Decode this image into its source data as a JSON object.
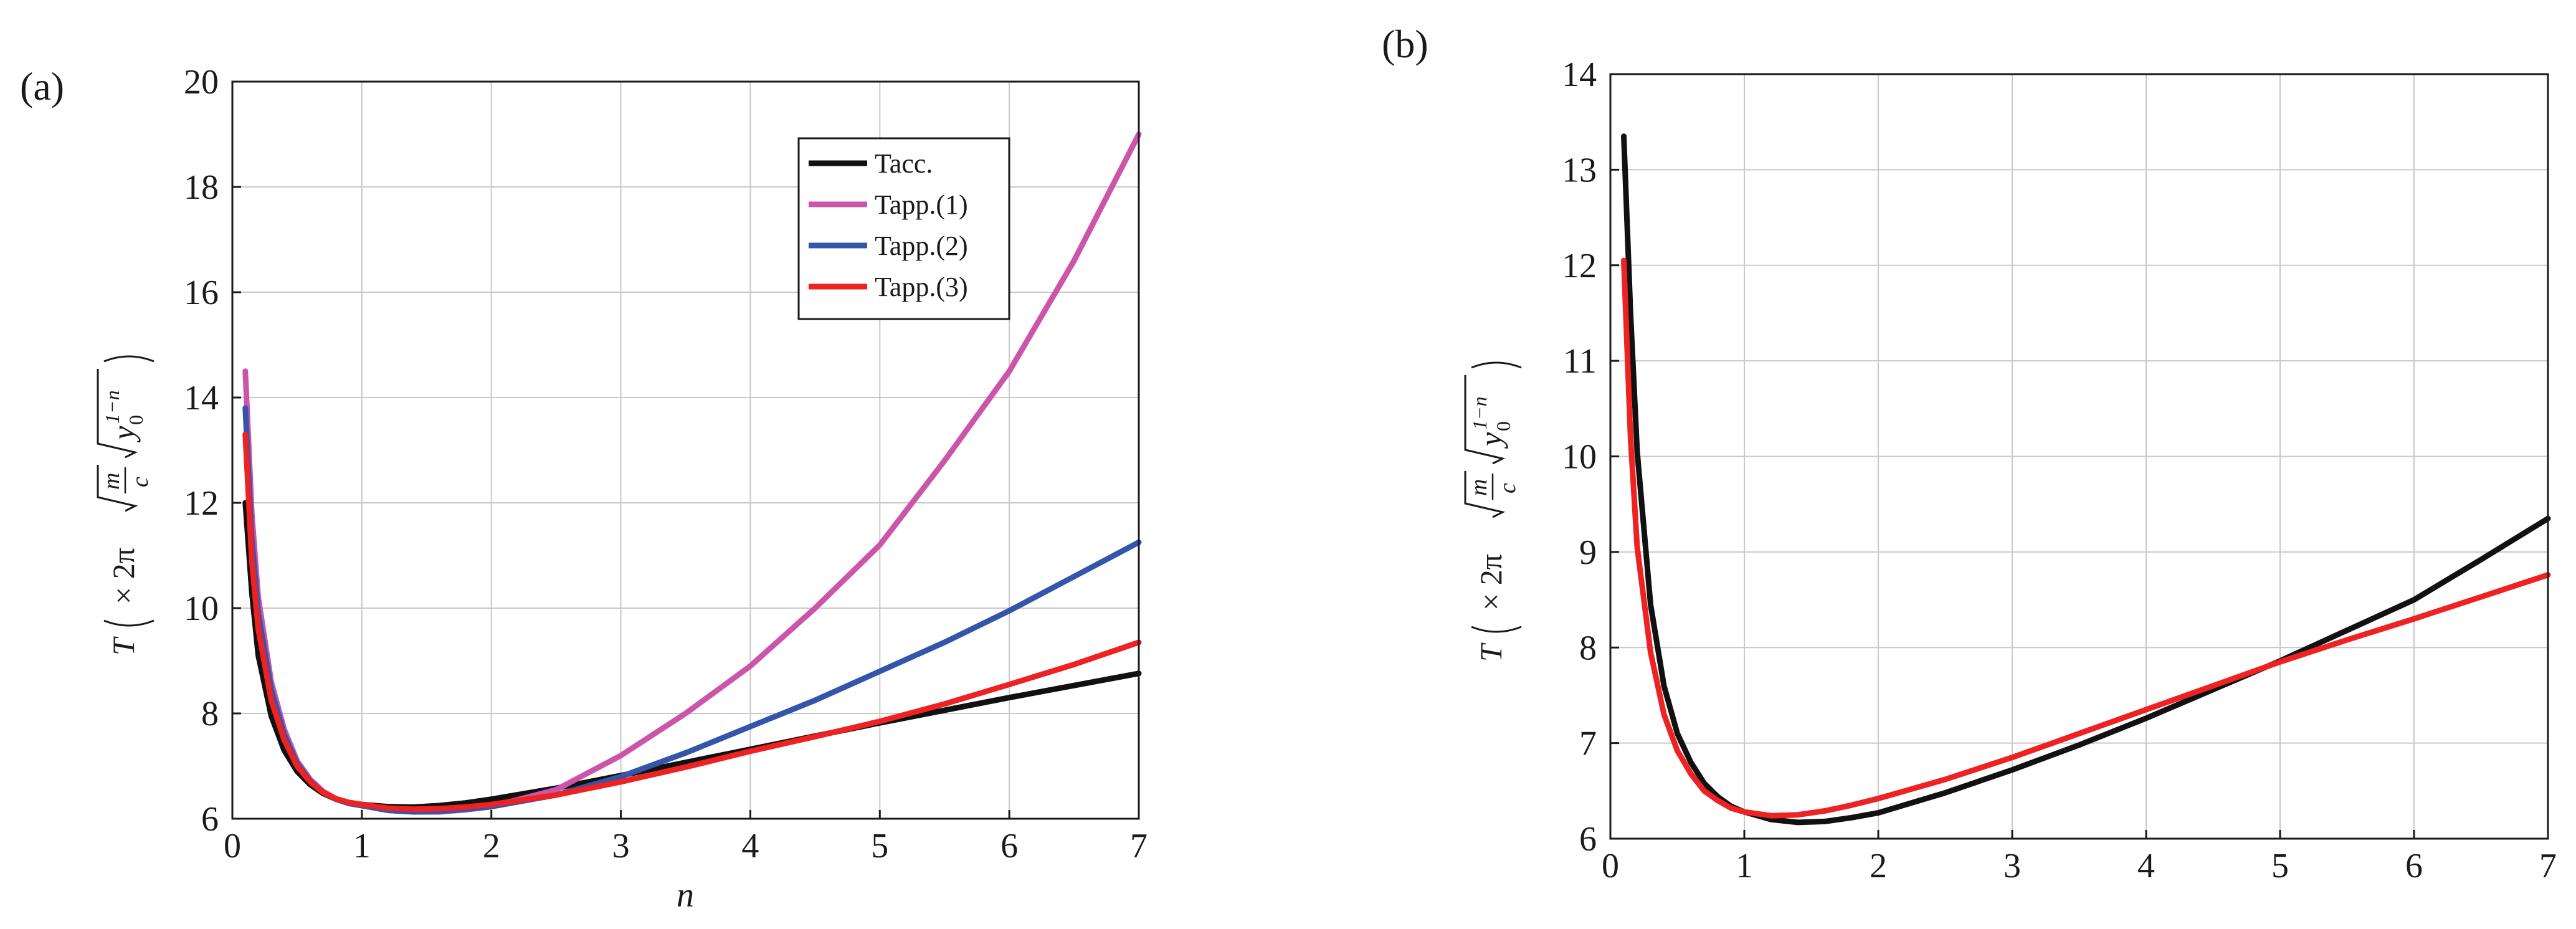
{
  "chart_data": [
    {
      "type": "line",
      "panel_label": "(a)",
      "xlabel": "n",
      "ylabel": {
        "prefix": "T",
        "times": "× 2π",
        "frac_num": "m",
        "frac_den": "c",
        "y_base": "y",
        "y_sub": "0",
        "y_sup": "1−n"
      },
      "xlim": [
        0,
        7
      ],
      "ylim": [
        6,
        20
      ],
      "x_ticks": [
        0,
        1,
        2,
        3,
        4,
        5,
        6,
        7
      ],
      "y_ticks": [
        6,
        8,
        10,
        12,
        14,
        16,
        18,
        20
      ],
      "grid": true,
      "legend_position": "top-right",
      "series": [
        {
          "name": "Tacc.",
          "color": "#111111",
          "x": [
            0.1,
            0.15,
            0.2,
            0.3,
            0.4,
            0.5,
            0.6,
            0.7,
            0.8,
            0.9,
            1.0,
            1.2,
            1.4,
            1.6,
            1.8,
            2.0,
            2.5,
            3.0,
            3.5,
            4.0,
            4.5,
            5.0,
            5.5,
            6.0,
            6.5,
            7.0
          ],
          "y": [
            12.0,
            10.3,
            9.1,
            7.95,
            7.3,
            6.9,
            6.65,
            6.48,
            6.37,
            6.3,
            6.27,
            6.23,
            6.22,
            6.25,
            6.3,
            6.37,
            6.58,
            6.82,
            7.07,
            7.32,
            7.57,
            7.82,
            8.06,
            8.3,
            8.53,
            8.76
          ]
        },
        {
          "name": "Tapp.(1)",
          "color": "#cc55aa",
          "x": [
            0.1,
            0.15,
            0.2,
            0.3,
            0.4,
            0.5,
            0.6,
            0.7,
            0.8,
            0.9,
            1.0,
            1.2,
            1.4,
            1.6,
            1.8,
            2.0,
            2.5,
            3.0,
            3.5,
            4.0,
            4.5,
            5.0,
            5.5,
            6.0,
            6.5,
            7.0
          ],
          "y": [
            14.5,
            11.8,
            10.2,
            8.6,
            7.7,
            7.1,
            6.75,
            6.52,
            6.38,
            6.3,
            6.25,
            6.16,
            6.13,
            6.13,
            6.17,
            6.23,
            6.55,
            7.2,
            8.0,
            8.9,
            10.0,
            11.2,
            12.8,
            14.5,
            16.6,
            19.0
          ]
        },
        {
          "name": "Tapp.(2)",
          "color": "#3355aa",
          "x": [
            0.1,
            0.15,
            0.2,
            0.3,
            0.4,
            0.5,
            0.6,
            0.7,
            0.8,
            0.9,
            1.0,
            1.2,
            1.4,
            1.6,
            1.8,
            2.0,
            2.5,
            3.0,
            3.5,
            4.0,
            4.5,
            5.0,
            5.5,
            6.0,
            6.5,
            7.0
          ],
          "y": [
            13.8,
            11.3,
            9.9,
            8.45,
            7.6,
            7.05,
            6.72,
            6.5,
            6.37,
            6.29,
            6.25,
            6.16,
            6.13,
            6.14,
            6.18,
            6.23,
            6.45,
            6.8,
            7.25,
            7.75,
            8.25,
            8.8,
            9.35,
            9.95,
            10.6,
            11.25
          ]
        },
        {
          "name": "Tapp.(3)",
          "color": "#ee2222",
          "x": [
            0.1,
            0.15,
            0.2,
            0.3,
            0.4,
            0.5,
            0.6,
            0.7,
            0.8,
            0.9,
            1.0,
            1.2,
            1.4,
            1.6,
            1.8,
            2.0,
            2.5,
            3.0,
            3.5,
            4.0,
            4.5,
            5.0,
            5.5,
            6.0,
            6.5,
            7.0
          ],
          "y": [
            13.3,
            10.9,
            9.6,
            8.25,
            7.5,
            7.0,
            6.7,
            6.5,
            6.38,
            6.31,
            6.27,
            6.2,
            6.18,
            6.19,
            6.22,
            6.27,
            6.45,
            6.7,
            6.98,
            7.28,
            7.56,
            7.85,
            8.18,
            8.55,
            8.93,
            9.35
          ]
        }
      ]
    },
    {
      "type": "line",
      "panel_label": "(b)",
      "xlabel": "",
      "ylabel": {
        "prefix": "T",
        "times": "× 2π",
        "frac_num": "m",
        "frac_den": "c",
        "y_base": "y",
        "y_sub": "0",
        "y_sup": "1−n"
      },
      "xlim": [
        0,
        7
      ],
      "ylim": [
        6,
        14
      ],
      "x_ticks": [
        0,
        1,
        2,
        3,
        4,
        5,
        6,
        7
      ],
      "y_ticks": [
        6,
        7,
        8,
        9,
        10,
        11,
        12,
        13,
        14
      ],
      "grid": true,
      "legend_position": "none",
      "series": [
        {
          "name": "black",
          "color": "#111111",
          "x": [
            0.1,
            0.15,
            0.2,
            0.3,
            0.4,
            0.5,
            0.6,
            0.7,
            0.8,
            0.9,
            1.0,
            1.2,
            1.4,
            1.6,
            1.8,
            2.0,
            2.5,
            3.0,
            3.5,
            4.0,
            4.5,
            5.0,
            5.5,
            6.0,
            6.5,
            7.0
          ],
          "y": [
            13.35,
            11.5,
            10.05,
            8.45,
            7.6,
            7.1,
            6.8,
            6.58,
            6.44,
            6.34,
            6.28,
            6.2,
            6.17,
            6.18,
            6.22,
            6.27,
            6.48,
            6.72,
            6.98,
            7.26,
            7.56,
            7.86,
            8.18,
            8.5,
            8.92,
            9.35
          ]
        },
        {
          "name": "red",
          "color": "#ee2222",
          "x": [
            0.1,
            0.15,
            0.2,
            0.3,
            0.4,
            0.5,
            0.6,
            0.7,
            0.8,
            0.9,
            1.0,
            1.2,
            1.4,
            1.6,
            1.8,
            2.0,
            2.5,
            3.0,
            3.5,
            4.0,
            4.5,
            5.0,
            5.5,
            6.0,
            6.5,
            7.0
          ],
          "y": [
            12.05,
            10.2,
            9.05,
            7.95,
            7.3,
            6.92,
            6.68,
            6.5,
            6.4,
            6.32,
            6.28,
            6.24,
            6.25,
            6.29,
            6.35,
            6.42,
            6.62,
            6.85,
            7.1,
            7.35,
            7.6,
            7.85,
            8.08,
            8.3,
            8.53,
            8.76
          ]
        }
      ]
    }
  ]
}
